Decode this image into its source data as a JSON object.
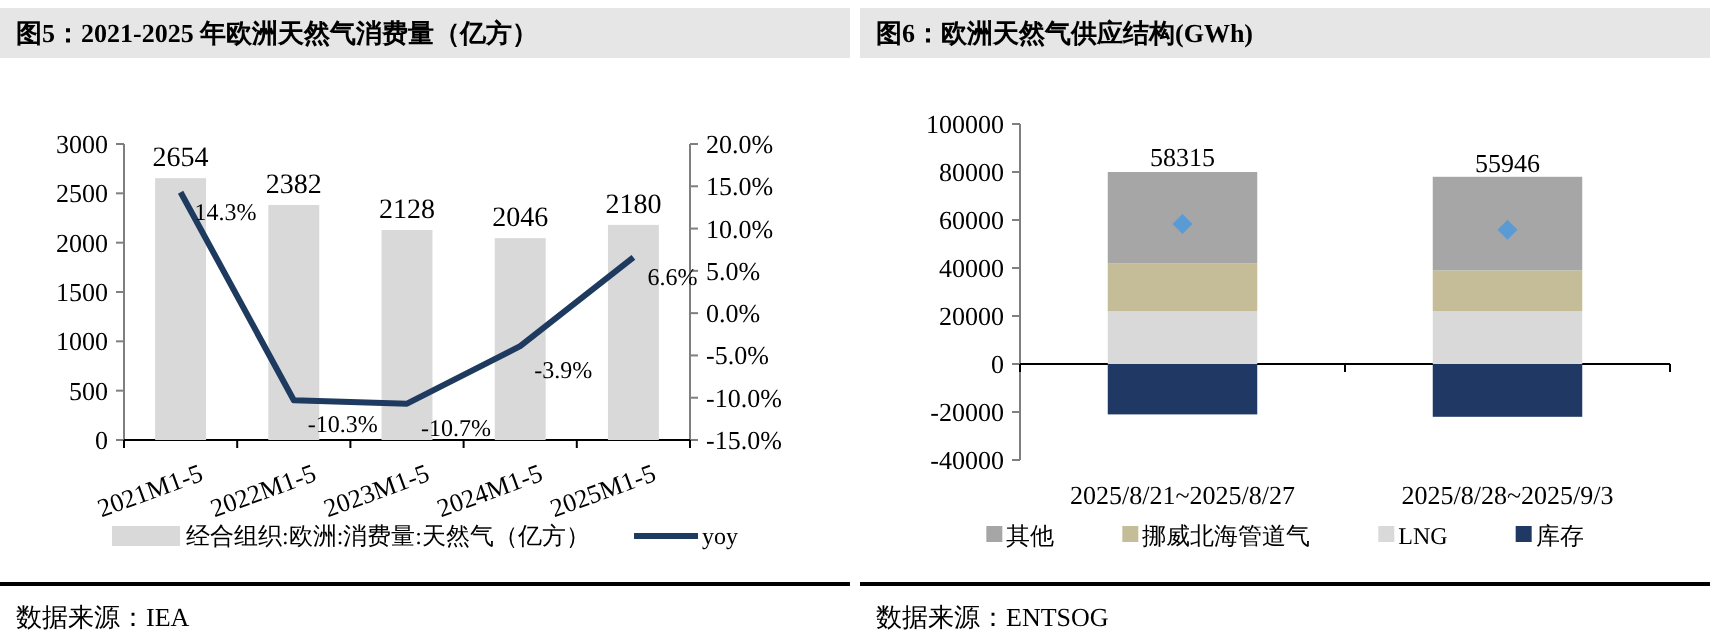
{
  "chart_data": [
    {
      "type": "bar",
      "title": "图5：2021-2025 年欧洲天然气消费量（亿方）",
      "categories": [
        "2021M1-5",
        "2022M1-5",
        "2023M1-5",
        "2024M1-5",
        "2025M1-5"
      ],
      "series": [
        {
          "name": "经合组织:欧洲:消费量:天然气（亿方）",
          "color": "#d9d9d9",
          "values": [
            2654,
            2382,
            2128,
            2046,
            2180
          ]
        },
        {
          "name": "yoy",
          "type": "line",
          "axis": "y2",
          "color": "#1f3a5f",
          "values": [
            14.3,
            -10.3,
            -10.7,
            -3.9,
            6.6
          ],
          "value_labels": [
            "14.3%",
            "-10.3%",
            "-10.7%",
            "-3.9%",
            "6.6%"
          ]
        }
      ],
      "data_labels": true,
      "ylim": [
        0,
        3000
      ],
      "yticks": [
        0,
        500,
        1000,
        1500,
        2000,
        2500,
        3000
      ],
      "y2lim": [
        -15,
        20
      ],
      "y2ticks": [
        {
          "value": -15,
          "label": "-15.0%"
        },
        {
          "value": -10,
          "label": "-10.0%"
        },
        {
          "value": -5,
          "label": "-5.0%"
        },
        {
          "value": 0,
          "label": "0.0%"
        },
        {
          "value": 5,
          "label": "5.0%"
        },
        {
          "value": 10,
          "label": "10.0%"
        },
        {
          "value": 15,
          "label": "15.0%"
        },
        {
          "value": 20,
          "label": "20.0%"
        }
      ],
      "legend": "bottom",
      "annotations": [
        "数据来源：IEA"
      ]
    },
    {
      "type": "bar",
      "title": "图6：欧洲天然气供应结构(GWh)",
      "categories": [
        "2025/8/21~2025/8/27",
        "2025/8/28~2025/9/3"
      ],
      "stacked": true,
      "series": [
        {
          "name": "库存",
          "color": "#1f3864",
          "values": [
            -21000,
            -22000
          ]
        },
        {
          "name": "LNG",
          "color": "#d9d9d9",
          "values": [
            22000,
            22000
          ]
        },
        {
          "name": "挪威北海管道气",
          "color": "#c4bd97",
          "values": [
            20000,
            17000
          ]
        },
        {
          "name": "其他",
          "color": "#a6a6a6",
          "values": [
            38000,
            39000
          ]
        },
        {
          "type": "scatter",
          "marker": "diamond",
          "color": "#5b9bd5",
          "x": [
            "2025/8/21~2025/8/27",
            "2025/8/28~2025/9/3"
          ],
          "values": [
            58315,
            55946
          ],
          "value_labels": [
            "58315",
            "55946"
          ]
        }
      ],
      "ylim": [
        -40000,
        100000
      ],
      "yticks": [
        -40000,
        -20000,
        0,
        20000,
        40000,
        60000,
        80000,
        100000
      ],
      "legend": "bottom",
      "annotations": [
        "数据来源：ENTSOG"
      ]
    }
  ]
}
